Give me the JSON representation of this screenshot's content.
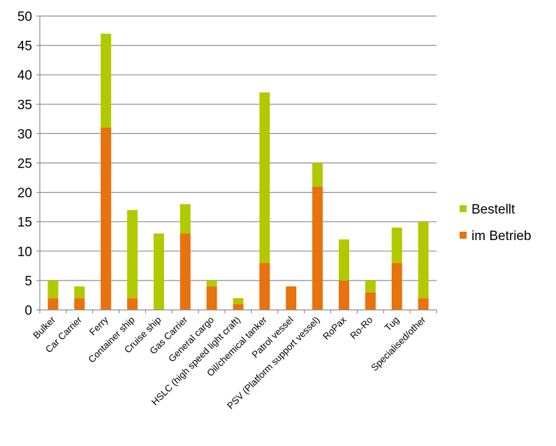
{
  "chart_data": {
    "type": "bar",
    "stacked": true,
    "categories": [
      "Bulker",
      "Car Carrier",
      "Ferry",
      "Container ship",
      "Cruise ship",
      "Gas Carrier",
      "General cargo",
      "HSLC (high speed light craft)",
      "Oil/chemical tanker",
      "Patrol vessel",
      "PSV (Platform support vessel)",
      "RoPax",
      "Ro-Ro",
      "Tug",
      "Specialised/other"
    ],
    "series": [
      {
        "name": "im Betrieb",
        "color": "#e8720c",
        "values": [
          2,
          2,
          31,
          2,
          0,
          13,
          4,
          1,
          8,
          4,
          21,
          5,
          3,
          8,
          2
        ]
      },
      {
        "name": "Bestellt",
        "color": "#b2c900",
        "values": [
          3,
          2,
          16,
          15,
          13,
          5,
          1,
          1,
          29,
          0,
          4,
          7,
          2,
          6,
          13
        ]
      }
    ],
    "ylim": [
      0,
      50
    ],
    "yticks": [
      0,
      5,
      10,
      15,
      20,
      25,
      30,
      35,
      40,
      45,
      50
    ],
    "grid": true,
    "legend_position": "right",
    "title": "",
    "xlabel": "",
    "ylabel": ""
  }
}
